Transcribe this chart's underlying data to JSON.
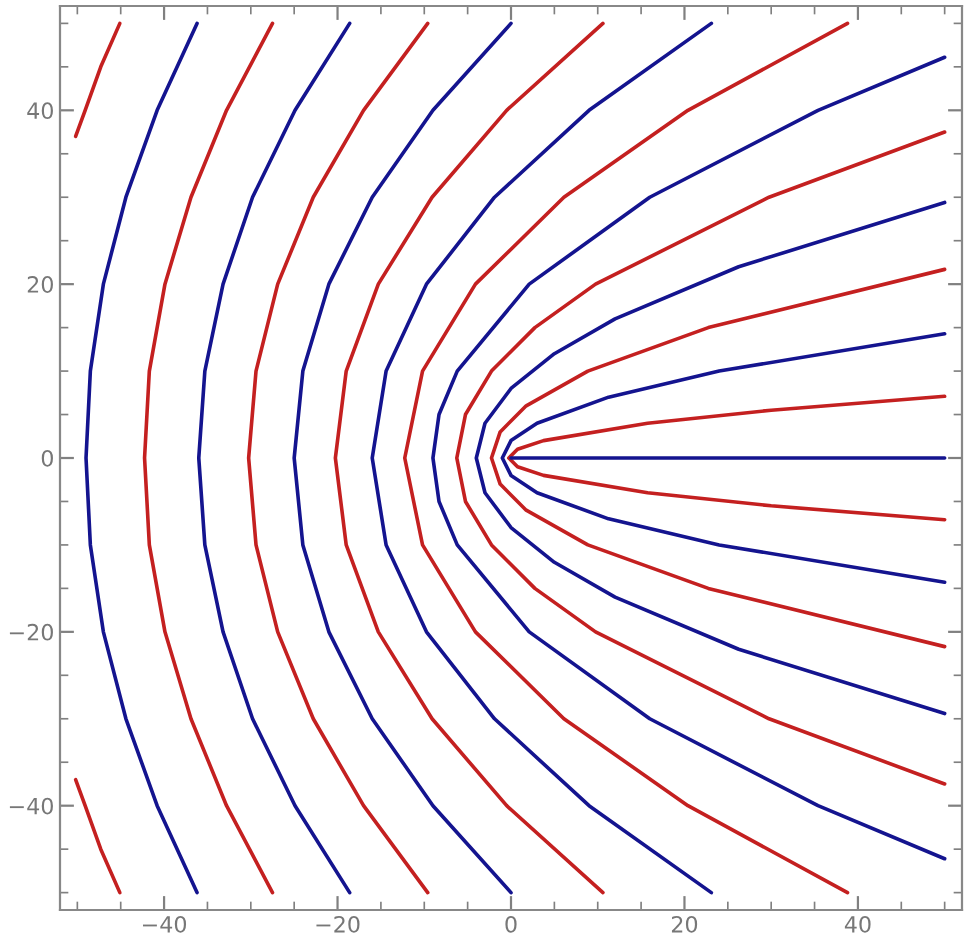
{
  "chart_data": {
    "type": "line",
    "xlim": [
      -52,
      52
    ],
    "ylim": [
      -52,
      52
    ],
    "xticks": [
      {
        "value": -50,
        "label": null
      },
      {
        "value": -45,
        "label": null
      },
      -40,
      {
        "value": -35,
        "label": null
      },
      {
        "value": -30,
        "label": null
      },
      {
        "value": -25,
        "label": null
      },
      -20,
      {
        "value": -15,
        "label": null
      },
      {
        "value": -10,
        "label": null
      },
      {
        "value": -5,
        "label": null
      },
      0,
      {
        "value": 5,
        "label": null
      },
      {
        "value": 10,
        "label": null
      },
      {
        "value": 15,
        "label": null
      },
      20,
      {
        "value": 25,
        "label": null
      },
      {
        "value": 30,
        "label": null
      },
      {
        "value": 35,
        "label": null
      },
      40,
      {
        "value": 45,
        "label": null
      },
      {
        "value": 50,
        "label": null
      }
    ],
    "yticks": [
      {
        "value": -50,
        "label": null
      },
      {
        "value": -45,
        "label": null
      },
      -40,
      {
        "value": -35,
        "label": null
      },
      {
        "value": -30,
        "label": null
      },
      {
        "value": -25,
        "label": null
      },
      -20,
      {
        "value": -15,
        "label": null
      },
      {
        "value": -10,
        "label": null
      },
      {
        "value": -5,
        "label": null
      },
      0,
      {
        "value": 5,
        "label": null
      },
      {
        "value": 10,
        "label": null
      },
      {
        "value": 15,
        "label": null
      },
      20,
      {
        "value": 25,
        "label": null
      },
      {
        "value": 30,
        "label": null
      },
      {
        "value": 35,
        "label": null
      },
      40,
      {
        "value": 45,
        "label": null
      },
      {
        "value": 50,
        "label": null
      }
    ],
    "grid": false,
    "marker": "none",
    "line_style": "solid",
    "series": [
      {
        "color": "#c42020",
        "x": [
          -45.1,
          -47.3,
          -49.1,
          -50.2
        ],
        "values": [
          50,
          45,
          40,
          37
        ]
      },
      {
        "color": "#c42020",
        "x": [
          -50.2,
          -49.1,
          -47.3,
          -45.1
        ],
        "values": [
          -37,
          -40,
          -45,
          -50
        ]
      },
      {
        "color": "#14148f",
        "x": [
          -36.2,
          -40.8,
          -44.4,
          -47.0,
          -48.5,
          -49,
          -48.5,
          -47.0,
          -44.4,
          -40.8,
          -36.2
        ],
        "values": [
          50,
          40,
          30,
          20,
          10,
          0,
          -10,
          -20,
          -30,
          -40,
          -50
        ]
      },
      {
        "color": "#c42020",
        "x": [
          -27.5,
          -32.8,
          -36.9,
          -39.9,
          -41.7,
          -42.25,
          -41.7,
          -39.9,
          -36.9,
          -32.8,
          -27.5
        ],
        "values": [
          50,
          40,
          30,
          20,
          10,
          0,
          -10,
          -20,
          -30,
          -40,
          -50
        ]
      },
      {
        "color": "#14148f",
        "x": [
          -18.6,
          -24.9,
          -29.8,
          -33.2,
          -35.3,
          -36,
          -35.3,
          -33.2,
          -29.8,
          -24.9,
          -18.6
        ],
        "values": [
          50,
          40,
          30,
          20,
          10,
          0,
          -10,
          -20,
          -30,
          -40,
          -50
        ]
      },
      {
        "color": "#c42020",
        "x": [
          -9.6,
          -17.0,
          -22.8,
          -26.9,
          -29.4,
          -30.25,
          -29.4,
          -26.9,
          -22.8,
          -17.0,
          -9.6
        ],
        "values": [
          50,
          40,
          30,
          20,
          10,
          0,
          -10,
          -20,
          -30,
          -40,
          -50
        ]
      },
      {
        "color": "#14148f",
        "x": [
          0,
          -9,
          -16,
          -21,
          -24,
          -25,
          -24,
          -21,
          -16,
          -9,
          0
        ],
        "values": [
          50,
          40,
          30,
          20,
          10,
          0,
          -10,
          -20,
          -30,
          -40,
          -50
        ]
      },
      {
        "color": "#c42020",
        "x": [
          10.6,
          -0.5,
          -9.1,
          -15.3,
          -19.0,
          -20.25,
          -19.0,
          -15.3,
          -9.1,
          -0.5,
          10.6
        ],
        "values": [
          50,
          40,
          30,
          20,
          10,
          0,
          -10,
          -20,
          -30,
          -40,
          -50
        ]
      },
      {
        "color": "#14148f",
        "x": [
          23.1,
          9,
          -1.9,
          -9.75,
          -14.4,
          -16,
          -14.4,
          -9.75,
          -1.9,
          9,
          23.1
        ],
        "values": [
          50,
          40,
          30,
          20,
          10,
          0,
          -10,
          -20,
          -30,
          -40,
          -50
        ]
      },
      {
        "color": "#c42020",
        "x": [
          38.8,
          20.4,
          6.1,
          -4.1,
          -10.2,
          -12.25,
          -10.2,
          -4.1,
          6.1,
          20.4,
          38.8
        ],
        "values": [
          50,
          40,
          30,
          20,
          10,
          0,
          -10,
          -20,
          -30,
          -40,
          -50
        ]
      },
      {
        "color": "#14148f",
        "x": [
          50,
          35.4,
          16,
          2.1,
          -6.2,
          -8.3,
          -9,
          -8.3,
          -6.2,
          2.1,
          16,
          35.4,
          50
        ],
        "values": [
          46.1,
          40,
          30,
          20,
          10,
          5,
          0,
          -5,
          -10,
          -20,
          -30,
          -40,
          -46.1
        ]
      },
      {
        "color": "#c42020",
        "x": [
          50,
          29.75,
          9.75,
          2.75,
          -2.25,
          -5.25,
          -6.25,
          -5.25,
          -2.25,
          2.75,
          9.75,
          29.75,
          50
        ],
        "values": [
          37.5,
          30,
          20,
          15,
          10,
          5,
          0,
          -5,
          -10,
          -15,
          -20,
          -30,
          -37.5
        ]
      },
      {
        "color": "#14148f",
        "x": [
          50,
          26.25,
          12,
          5,
          0,
          -3,
          -4,
          -3,
          0,
          5,
          12,
          26.25,
          50
        ],
        "values": [
          29.4,
          22,
          16,
          12,
          8,
          4,
          0,
          -4,
          -8,
          -12,
          -16,
          -22,
          -29.4
        ]
      },
      {
        "color": "#c42020",
        "x": [
          50,
          22.75,
          8.86,
          1.75,
          -1.25,
          -2.25,
          -1.25,
          1.75,
          8.86,
          22.75,
          50
        ],
        "values": [
          21.7,
          15,
          10,
          6,
          3,
          0,
          -3,
          -6,
          -10,
          -15,
          -21.7
        ]
      },
      {
        "color": "#14148f",
        "x": [
          50,
          24,
          11.25,
          3,
          0,
          -1,
          0,
          3,
          11.25,
          24,
          50
        ],
        "values": [
          14.3,
          10,
          7,
          4,
          2,
          0,
          -2,
          -4,
          -7,
          -10,
          -14.3
        ]
      },
      {
        "color": "#c42020",
        "x": [
          50,
          30,
          15.75,
          3.75,
          0.75,
          -0.25,
          0.75,
          3.75,
          15.75,
          30,
          50
        ],
        "values": [
          7.1,
          5.5,
          4,
          2,
          1,
          0,
          -1,
          -2,
          -4,
          -5.5,
          -7.1
        ]
      },
      {
        "color": "#14148f",
        "x": [
          0,
          50
        ],
        "values": [
          0,
          0
        ]
      }
    ]
  }
}
